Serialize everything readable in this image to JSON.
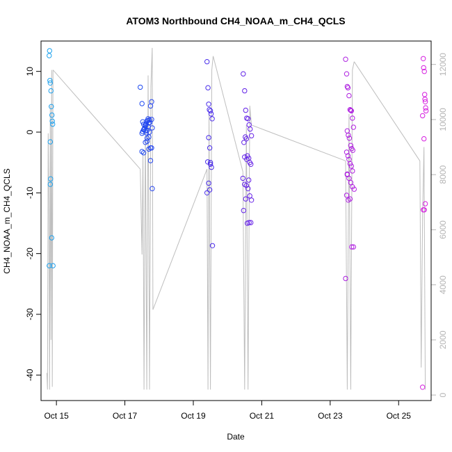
{
  "chart_data": {
    "type": "scatter",
    "title": "ATOM3 Northbound CH4_NOAA_m_CH4_QCLS",
    "xlabel": "Date",
    "ylabel": "CH4_NOAA_m_CH4_QCLS",
    "x_unit": "day-of-October",
    "xlim": [
      14.55,
      25.95
    ],
    "ylim": [
      -44.2,
      15.0
    ],
    "y2lim": [
      -200,
      12850
    ],
    "x_ticks": [
      {
        "value": 15,
        "label": "Oct 15"
      },
      {
        "value": 17,
        "label": "Oct 17"
      },
      {
        "value": 19,
        "label": "Oct 19"
      },
      {
        "value": 21,
        "label": "Oct 21"
      },
      {
        "value": 23,
        "label": "Oct 23"
      },
      {
        "value": 25,
        "label": "Oct 25"
      }
    ],
    "y_ticks": [
      10,
      0,
      -10,
      -20,
      -30,
      -40
    ],
    "y2_ticks": [
      0,
      2000,
      4000,
      6000,
      8000,
      10000,
      12000
    ],
    "colors": {
      "altitude_line": "#bebebe",
      "axis_right": "#b4b4b4",
      "point_gradient": [
        "#1ea6ee",
        "#1f4af0",
        "#5a1fe8",
        "#a51fe0",
        "#d81fe0"
      ]
    },
    "secondary_series": {
      "name": "",
      "description_axis": "right",
      "segments": [
        {
          "x": [
            14.72,
            14.74,
            14.76,
            14.78,
            14.8,
            14.82,
            14.84,
            14.86,
            14.88,
            14.9
          ],
          "y": [
            800,
            200,
            9500,
            7000,
            200,
            10500,
            2000,
            11800,
            300,
            11800
          ]
        },
        {
          "x": [
            17.45,
            17.5,
            17.53,
            17.56,
            17.6,
            17.64,
            17.68,
            17.72,
            17.76,
            17.8,
            17.82
          ],
          "y": [
            8200,
            5100,
            8800,
            200,
            9800,
            200,
            11600,
            200,
            11200,
            12600,
            3100
          ]
        },
        {
          "x": [
            19.4,
            19.43,
            19.46,
            19.5,
            19.54,
            19.58
          ],
          "y": [
            8200,
            200,
            10200,
            200,
            11800,
            12300
          ]
        },
        {
          "x": [
            20.45,
            20.5,
            20.55,
            20.6,
            20.65,
            20.7
          ],
          "y": [
            8100,
            200,
            9800,
            200,
            10500,
            9800
          ]
        },
        {
          "x": [
            23.45,
            23.5,
            23.55,
            23.6,
            23.65,
            23.7
          ],
          "y": [
            8500,
            200,
            10200,
            200,
            11800,
            12100
          ]
        },
        {
          "x": [
            25.62,
            25.66,
            25.7,
            25.74,
            25.78
          ],
          "y": [
            8500,
            1000,
            6500,
            9000,
            200
          ]
        }
      ],
      "connectors": [
        {
          "x": [
            14.9,
            17.45
          ],
          "y": [
            11800,
            8200
          ]
        },
        {
          "x": [
            17.82,
            19.4
          ],
          "y": [
            3100,
            8200
          ]
        },
        {
          "x": [
            19.58,
            20.45
          ],
          "y": [
            12300,
            8100
          ]
        },
        {
          "x": [
            20.7,
            23.45
          ],
          "y": [
            9800,
            8500
          ]
        },
        {
          "x": [
            23.7,
            25.62
          ],
          "y": [
            12100,
            8500
          ]
        }
      ]
    },
    "series": [
      {
        "name": "",
        "x": [
          14.79,
          14.8,
          14.81,
          14.82,
          14.84,
          14.85,
          14.87,
          14.88,
          14.89,
          14.82,
          14.83,
          14.82,
          14.86,
          14.79,
          14.9
        ],
        "y": [
          12.6,
          13.4,
          8.5,
          8.1,
          6.8,
          4.2,
          2.8,
          1.8,
          1.3,
          -1.6,
          -7.7,
          -8.6,
          -17.4,
          -22.0,
          -22.0
        ]
      },
      {
        "name": "",
        "x": [
          17.45,
          17.5,
          17.52,
          17.55,
          17.58,
          17.6,
          17.62,
          17.65,
          17.68,
          17.7,
          17.72,
          17.75,
          17.78,
          17.8,
          17.5,
          17.55,
          17.6,
          17.65,
          17.7,
          17.75,
          17.78,
          17.52,
          17.56,
          17.6,
          17.64,
          17.68,
          17.72,
          17.5,
          17.55,
          17.6,
          17.65,
          17.7,
          17.75,
          17.8,
          17.62,
          17.67,
          17.73,
          17.78
        ],
        "y": [
          7.4,
          4.7,
          1.7,
          1.3,
          0.7,
          0.2,
          -0.1,
          0.3,
          0.9,
          1.5,
          2.0,
          4.3,
          5.0,
          -9.3,
          -3.2,
          -3.4,
          -1.7,
          -1.0,
          -0.8,
          -2.6,
          -2.6,
          0.1,
          0.5,
          1.2,
          1.8,
          2.2,
          0.0,
          -0.2,
          0.4,
          1.0,
          -1.5,
          -2.8,
          -4.7,
          0.7,
          1.4,
          1.9,
          1.6,
          2.1
        ]
      },
      {
        "name": "",
        "x": [
          19.4,
          19.43,
          19.45,
          19.47,
          19.5,
          19.52,
          19.55,
          19.45,
          19.48,
          19.42,
          19.5,
          19.53,
          19.45,
          19.48,
          19.4,
          19.56,
          19.5
        ],
        "y": [
          11.6,
          7.3,
          4.6,
          3.7,
          3.5,
          3.0,
          2.2,
          -0.9,
          -2.6,
          -4.9,
          -5.3,
          -5.8,
          -8.4,
          -9.5,
          -10.0,
          -18.7,
          -5.0
        ]
      },
      {
        "name": "",
        "x": [
          20.46,
          20.5,
          20.53,
          20.56,
          20.6,
          20.63,
          20.66,
          20.7,
          20.48,
          20.52,
          20.55,
          20.58,
          20.62,
          20.65,
          20.68,
          20.45,
          20.5,
          20.55,
          20.6,
          20.65,
          20.7,
          20.47,
          20.53,
          20.58,
          20.63,
          20.68,
          20.5,
          20.56,
          20.62
        ],
        "y": [
          9.6,
          6.8,
          3.6,
          2.3,
          2.2,
          1.2,
          0.5,
          -0.6,
          -1.7,
          -0.8,
          -1.1,
          -3.9,
          -4.3,
          -5.0,
          -5.3,
          -7.6,
          -8.6,
          -8.8,
          -9.3,
          -10.5,
          -11.2,
          -12.9,
          -11.0,
          -15.0,
          -14.9,
          -14.9,
          -4.1,
          -4.5,
          -7.9
        ]
      },
      {
        "name": "",
        "x": [
          23.45,
          23.48,
          23.5,
          23.52,
          23.55,
          23.58,
          23.6,
          23.62,
          23.65,
          23.68,
          23.5,
          23.53,
          23.56,
          23.6,
          23.63,
          23.66,
          23.48,
          23.52,
          23.55,
          23.58,
          23.62,
          23.65,
          23.5,
          23.55,
          23.6,
          23.65,
          23.7,
          23.48,
          23.53,
          23.58,
          23.63,
          23.68,
          23.45,
          23.5
        ],
        "y": [
          12.0,
          9.6,
          7.5,
          7.3,
          6.0,
          3.7,
          3.6,
          3.5,
          2.3,
          0.8,
          0.2,
          -0.5,
          -1.0,
          -2.2,
          -2.7,
          -3.0,
          -3.3,
          -3.9,
          -4.5,
          -5.2,
          -5.6,
          -6.4,
          -7.0,
          -7.6,
          -8.3,
          -9.0,
          -9.4,
          -10.4,
          -11.2,
          -11.0,
          -18.9,
          -18.9,
          -24.1,
          -6.9
        ]
      },
      {
        "name": "",
        "x": [
          25.72,
          25.73,
          25.75,
          25.76,
          25.77,
          25.78,
          25.79,
          25.8,
          25.7,
          25.74,
          25.78,
          25.72,
          25.75,
          25.7
        ],
        "y": [
          12.1,
          10.6,
          10.0,
          6.2,
          5.4,
          5.0,
          4.0,
          3.5,
          2.7,
          -1.1,
          -11.8,
          -12.8,
          -12.8,
          -42.0
        ]
      }
    ]
  }
}
